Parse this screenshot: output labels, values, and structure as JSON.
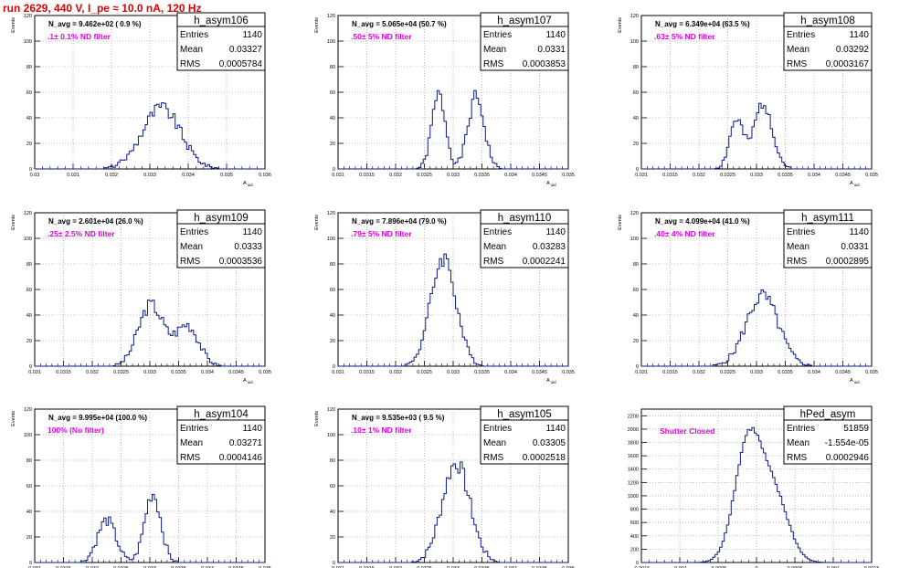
{
  "page": {
    "title": "run 2629,   440 V, I_pe ≈ 10.0 nA, 120 Hz"
  },
  "colors": {
    "histogram": "#0a1a8c",
    "annotation_nav": "#000000",
    "annotation_filter": "#e000e0",
    "grid": "#aaaaaa",
    "axis": "#000000",
    "title_red": "#e00000"
  },
  "chart_data": [
    {
      "type": "histogram",
      "name": "h_asym106",
      "stats": {
        "entries_label": "Entries",
        "entries": "1140",
        "mean_label": "Mean",
        "mean": "0.03327",
        "rms_label": "RMS",
        "rms": "0.0005784"
      },
      "nav_text": "N_avg = 9.462e+02 ( 0.9 %)",
      "filter_text": ".1± 0.1% ND filter",
      "ylabel": "Events",
      "xlabel": "A_uid",
      "xlim": [
        0.03,
        0.036
      ],
      "ylim": [
        0,
        120
      ],
      "xticks": [
        "0.03",
        "0.031",
        "0.032",
        "0.033",
        "0.034",
        "0.035",
        "0.036"
      ],
      "yticks": [
        "0",
        "20",
        "40",
        "60",
        "80",
        "100",
        "120"
      ],
      "peaks": [
        {
          "c": 0.0333,
          "s": 0.0005,
          "a": 48
        }
      ],
      "grid": true
    },
    {
      "type": "histogram",
      "name": "h_asym107",
      "stats": {
        "entries_label": "Entries",
        "entries": "1140",
        "mean_label": "Mean",
        "mean": "0.0331",
        "rms_label": "RMS",
        "rms": "0.0003853"
      },
      "nav_text": "N_avg = 5.065e+04 (50.7 %)",
      "filter_text": ".50± 5% ND filter",
      "ylabel": "Events",
      "xlabel": "A_uid",
      "xlim": [
        0.031,
        0.035
      ],
      "ylim": [
        0,
        120
      ],
      "xticks": [
        "0.031",
        "0.0315",
        "0.032",
        "0.0325",
        "0.033",
        "0.0335",
        "0.034",
        "0.0345",
        "0.035"
      ],
      "yticks": [
        "0",
        "20",
        "40",
        "60",
        "80",
        "100",
        "120"
      ],
      "peaks": [
        {
          "c": 0.03275,
          "s": 0.00012,
          "a": 58
        },
        {
          "c": 0.0334,
          "s": 0.00014,
          "a": 56
        }
      ],
      "grid": true
    },
    {
      "type": "histogram",
      "name": "h_asym108",
      "stats": {
        "entries_label": "Entries",
        "entries": "1140",
        "mean_label": "Mean",
        "mean": "0.03292",
        "rms_label": "RMS",
        "rms": "0.0003167"
      },
      "nav_text": "N_avg = 6.349e+04 (63.5 %)",
      "filter_text": ".63± 5% ND filter",
      "ylabel": "Events",
      "xlabel": "A_uid",
      "xlim": [
        0.031,
        0.035
      ],
      "ylim": [
        0,
        120
      ],
      "xticks": [
        "0.031",
        "0.0315",
        "0.032",
        "0.0325",
        "0.033",
        "0.0335",
        "0.034",
        "0.0345",
        "0.035"
      ],
      "yticks": [
        "0",
        "20",
        "40",
        "60",
        "80",
        "100",
        "120"
      ],
      "peaks": [
        {
          "c": 0.03265,
          "s": 0.00012,
          "a": 38
        },
        {
          "c": 0.03312,
          "s": 0.00016,
          "a": 52
        }
      ],
      "grid": true
    },
    {
      "type": "histogram",
      "name": "h_asym109",
      "stats": {
        "entries_label": "Entries",
        "entries": "1140",
        "mean_label": "Mean",
        "mean": "0.0333",
        "rms_label": "RMS",
        "rms": "0.0003536"
      },
      "nav_text": "N_avg = 2.601e+04 (26.0 %)",
      "filter_text": ".25± 2.5% ND filter",
      "ylabel": "Events",
      "xlabel": "A_uid",
      "xlim": [
        0.031,
        0.035
      ],
      "ylim": [
        0,
        120
      ],
      "xticks": [
        "0.031",
        "0.0315",
        "0.032",
        "0.0325",
        "0.033",
        "0.0335",
        "0.034",
        "0.0345",
        "0.035"
      ],
      "yticks": [
        "0",
        "20",
        "40",
        "60",
        "80",
        "100",
        "120"
      ],
      "peaks": [
        {
          "c": 0.03302,
          "s": 0.00022,
          "a": 48
        },
        {
          "c": 0.03365,
          "s": 0.0002,
          "a": 32
        }
      ],
      "grid": true
    },
    {
      "type": "histogram",
      "name": "h_asym110",
      "stats": {
        "entries_label": "Entries",
        "entries": "1140",
        "mean_label": "Mean",
        "mean": "0.03283",
        "rms_label": "RMS",
        "rms": "0.0002241"
      },
      "nav_text": "N_avg = 7.896e+04 (79.0 %)",
      "filter_text": ".79± 5% ND filter",
      "ylabel": "Events",
      "xlabel": "A_uid",
      "xlim": [
        0.031,
        0.035
      ],
      "ylim": [
        0,
        120
      ],
      "xticks": [
        "0.031",
        "0.0315",
        "0.032",
        "0.0325",
        "0.033",
        "0.0335",
        "0.034",
        "0.0345",
        "0.035"
      ],
      "yticks": [
        "0",
        "20",
        "40",
        "60",
        "80",
        "100",
        "120"
      ],
      "peaks": [
        {
          "c": 0.03283,
          "s": 0.00022,
          "a": 85
        }
      ],
      "grid": true
    },
    {
      "type": "histogram",
      "name": "h_asym111",
      "stats": {
        "entries_label": "Entries",
        "entries": "1140",
        "mean_label": "Mean",
        "mean": "0.0331",
        "rms_label": "RMS",
        "rms": "0.0002895"
      },
      "nav_text": "N_avg = 4.099e+04 (41.0 %)",
      "filter_text": ".40± 4% ND filter",
      "ylabel": "Events",
      "xlabel": "A_uid",
      "xlim": [
        0.031,
        0.035
      ],
      "ylim": [
        0,
        120
      ],
      "xticks": [
        "0.031",
        "0.0315",
        "0.032",
        "0.0325",
        "0.033",
        "0.0335",
        "0.034",
        "0.0345",
        "0.035"
      ],
      "yticks": [
        "0",
        "20",
        "40",
        "60",
        "80",
        "100",
        "120"
      ],
      "peaks": [
        {
          "c": 0.0331,
          "s": 0.00028,
          "a": 55
        }
      ],
      "grid": true
    },
    {
      "type": "histogram",
      "name": "h_asym104",
      "stats": {
        "entries_label": "Entries",
        "entries": "1140",
        "mean_label": "Mean",
        "mean": "0.03271",
        "rms_label": "RMS",
        "rms": "0.0004146"
      },
      "nav_text": "N_avg = 9.995e+04 (100.0 %)",
      "filter_text": "100% (No filter)",
      "ylabel": "Events",
      "xlabel": "A_uid",
      "xlim": [
        0.031,
        0.035
      ],
      "ylim": [
        0,
        120
      ],
      "xticks": [
        "0.031",
        "0.0315",
        "0.032",
        "0.0325",
        "0.033",
        "0.0335",
        "0.034",
        "0.0345",
        "0.035"
      ],
      "yticks": [
        "0",
        "20",
        "40",
        "60",
        "80",
        "100",
        "120"
      ],
      "peaks": [
        {
          "c": 0.03225,
          "s": 0.00016,
          "a": 33
        },
        {
          "c": 0.03305,
          "s": 0.00014,
          "a": 54
        }
      ],
      "grid": true
    },
    {
      "type": "histogram",
      "name": "h_asym105",
      "stats": {
        "entries_label": "Entries",
        "entries": "1140",
        "mean_label": "Mean",
        "mean": "0.03305",
        "rms_label": "RMS",
        "rms": "0.0002518"
      },
      "nav_text": "N_avg = 9.535e+03 ( 9.5 %)",
      "filter_text": ".10± 1% ND filter",
      "ylabel": "Events",
      "xlabel": "A_uid",
      "xlim": [
        0.031,
        0.035
      ],
      "ylim": [
        0,
        120
      ],
      "xticks": [
        "0.031",
        "0.0315",
        "0.032",
        "0.0325",
        "0.033",
        "0.0335",
        "0.034",
        "0.0345",
        "0.035"
      ],
      "yticks": [
        "0",
        "20",
        "40",
        "60",
        "80",
        "100",
        "120"
      ],
      "peaks": [
        {
          "c": 0.03305,
          "s": 0.00024,
          "a": 78
        }
      ],
      "grid": true
    },
    {
      "type": "histogram",
      "name": "hPed_asym",
      "stats": {
        "entries_label": "Entries",
        "entries": "51859",
        "mean_label": "Mean",
        "mean": "-1.554e-05",
        "rms_label": "RMS",
        "rms": "0.0002946"
      },
      "nav_text": "",
      "filter_text": "Shutter Closed",
      "ylabel": "",
      "xlabel": "",
      "xlim": [
        -0.0015,
        0.0015
      ],
      "ylim": [
        0,
        2300
      ],
      "xticks": [
        "-0.0015",
        "-0.001",
        "-0.0005",
        "0",
        "0.0005",
        "0.001",
        "0.0015"
      ],
      "yticks": [
        "0",
        "200",
        "400",
        "600",
        "800",
        "1000",
        "1200",
        "1400",
        "1600",
        "1800",
        "2000",
        "2200"
      ],
      "peaks": [
        {
          "c": -0.0001,
          "s": 0.00018,
          "a": 1850
        },
        {
          "c": 0.00025,
          "s": 0.00018,
          "a": 900
        }
      ],
      "grid": true
    }
  ]
}
